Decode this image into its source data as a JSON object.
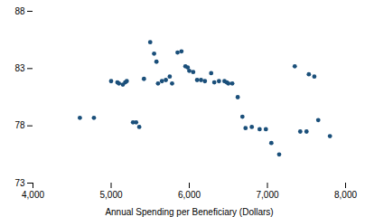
{
  "chart_data": {
    "type": "scatter",
    "xlabel": "Annual Spending per Beneficiary (Dollars)",
    "x": [
      4600,
      4780,
      5000,
      5080,
      5100,
      5150,
      5180,
      5200,
      5280,
      5320,
      5360,
      5420,
      5500,
      5550,
      5580,
      5600,
      5650,
      5700,
      5750,
      5780,
      5850,
      5900,
      5950,
      5980,
      6000,
      6050,
      6100,
      6150,
      6200,
      6280,
      6320,
      6380,
      6450,
      6480,
      6500,
      6550,
      6620,
      6680,
      6720,
      6800,
      6900,
      6980,
      7050,
      7150,
      7350,
      7420,
      7500,
      7530,
      7600,
      7650,
      7800
    ],
    "values": [
      78.7,
      78.7,
      81.9,
      81.8,
      81.7,
      81.6,
      81.8,
      81.9,
      78.3,
      78.3,
      77.9,
      82.1,
      85.3,
      84.3,
      83.6,
      81.7,
      81.9,
      82.0,
      82.3,
      81.7,
      84.4,
      84.5,
      83.2,
      83.1,
      82.8,
      82.7,
      82.0,
      82.0,
      81.9,
      82.6,
      81.8,
      81.9,
      81.9,
      81.8,
      81.7,
      81.7,
      80.5,
      78.8,
      77.8,
      77.9,
      77.7,
      77.7,
      76.5,
      75.5,
      83.2,
      77.5,
      77.5,
      82.5,
      82.3,
      78.5,
      77.1
    ],
    "color": "#1a4f7a",
    "xlim": [
      4000,
      8000
    ],
    "ylim": [
      73,
      88
    ],
    "xticks": [
      {
        "value": 4000,
        "label": "4,000"
      },
      {
        "value": 5000,
        "label": "5,000"
      },
      {
        "value": 6000,
        "label": "6,000"
      },
      {
        "value": 7000,
        "label": "7,000"
      },
      {
        "value": 8000,
        "label": "8,000"
      }
    ],
    "yticks": [
      73,
      78,
      83,
      88
    ],
    "grid": false
  }
}
